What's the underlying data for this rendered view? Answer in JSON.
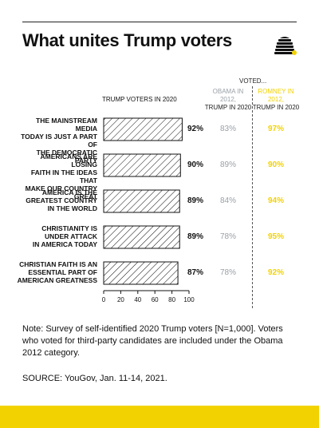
{
  "title": "What unites Trump voters",
  "logo_icon": "beehive-icon",
  "colors": {
    "gray": "#9aa0a6",
    "yellow": "#f2d200",
    "black": "#111111"
  },
  "header": {
    "voted": "VOTED...",
    "col_trump": "TRUMP VOTERS IN 2020",
    "col_obama_line1": "OBAMA IN 2012,",
    "col_obama_line2": "TRUMP IN 2020",
    "col_romney_line1": "ROMNEY IN 2012,",
    "col_romney_line2": "TRUMP IN 2020"
  },
  "chart_data": {
    "type": "bar",
    "orientation": "horizontal",
    "categories": [
      "THE MAINSTREAM MEDIA TODAY IS JUST A PART OF THE DEMOCRATIC PARTY",
      "AMERICANS ARE LOSING FAITH IN THE IDEAS THAT MAKE OUR COUNTRY GREAT",
      "AMERICA IS THE GREATEST COUNTRY IN THE WORLD",
      "CHRISTIANITY IS UNDER ATTACK IN AMERICA TODAY",
      "CHRISTIAN FAITH IS AN ESSENTIAL PART OF AMERICAN GREATNESS"
    ],
    "category_lines": [
      [
        "THE MAINSTREAM MEDIA",
        "TODAY IS JUST A PART OF",
        "THE DEMOCRATIC PARTY"
      ],
      [
        "AMERICANS ARE LOSING",
        "FAITH IN THE IDEAS THAT",
        "MAKE OUR COUNTRY GREAT"
      ],
      [
        "AMERICA IS THE",
        "GREATEST COUNTRY",
        "IN THE WORLD"
      ],
      [
        "CHRISTIANITY IS",
        "UNDER ATTACK",
        "IN AMERICA TODAY"
      ],
      [
        "CHRISTIAN FAITH IS AN",
        "ESSENTIAL PART OF",
        "AMERICAN GREATNESS"
      ]
    ],
    "series": [
      {
        "name": "TRUMP VOTERS IN 2020",
        "values": [
          92,
          90,
          89,
          89,
          87
        ],
        "labels": [
          "92%",
          "90%",
          "89%",
          "89%",
          "87%"
        ]
      },
      {
        "name": "OBAMA IN 2012, TRUMP IN 2020",
        "values": [
          83,
          89,
          84,
          78,
          78
        ],
        "labels": [
          "83%",
          "89%",
          "84%",
          "78%",
          "78%"
        ]
      },
      {
        "name": "ROMNEY IN 2012, TRUMP IN 2020",
        "values": [
          97,
          90,
          94,
          95,
          92
        ],
        "labels": [
          "97%",
          "90%",
          "94%",
          "95%",
          "92%"
        ]
      }
    ],
    "xlim": [
      0,
      100
    ],
    "xticks": [
      0,
      20,
      40,
      60,
      80,
      100
    ],
    "xtick_labels": [
      "0",
      "20",
      "40",
      "60",
      "80",
      "100"
    ],
    "bar_fill": "hatched",
    "grid": false
  },
  "note": "Note: Survey of self-identified 2020 Trump voters [N=1,000]. Voters who voted for third-party candidates are included under the Obama 2012 category.",
  "source": "SOURCE: YouGov, Jan. 11-14, 2021."
}
